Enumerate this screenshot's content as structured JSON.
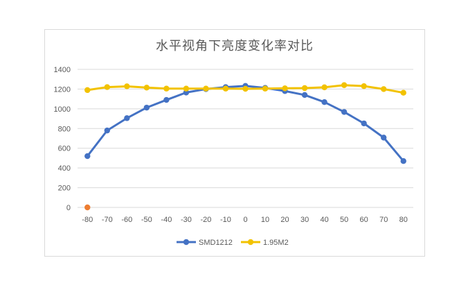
{
  "chart_data": {
    "type": "line",
    "title": "水平视角下亮度变化率对比",
    "x": [
      -80,
      -70,
      -60,
      -50,
      -40,
      -30,
      -20,
      -10,
      0,
      10,
      20,
      30,
      40,
      50,
      60,
      70,
      80
    ],
    "x_tick_labels": [
      "-80",
      "-70",
      "-60",
      "-50",
      "-40",
      "-30",
      "-20",
      "-10",
      "0",
      "10",
      "20",
      "30",
      "40",
      "50",
      "60",
      "70",
      "80"
    ],
    "ylim": [
      0,
      1400
    ],
    "y_ticks": [
      0,
      200,
      400,
      600,
      800,
      1000,
      1200,
      1400
    ],
    "grid": true,
    "legend_position": "bottom",
    "series": [
      {
        "name": "SMD1212",
        "color": "#4472c4",
        "values": [
          520,
          780,
          905,
          1012,
          1090,
          1165,
          1200,
          1220,
          1232,
          1212,
          1180,
          1140,
          1068,
          968,
          852,
          708,
          470
        ]
      },
      {
        "name": "1.95M2",
        "color": "#f2c200",
        "values": [
          1190,
          1220,
          1228,
          1215,
          1205,
          1205,
          1205,
          1205,
          1203,
          1205,
          1208,
          1210,
          1218,
          1240,
          1230,
          1200,
          1163
        ]
      }
    ],
    "extra_points": [
      {
        "x": -80,
        "y": 0,
        "color": "#ed7d31"
      }
    ]
  }
}
